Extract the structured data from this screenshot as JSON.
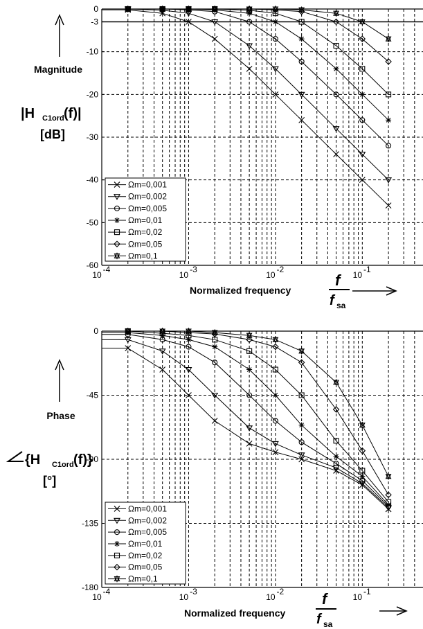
{
  "chart_data": [
    {
      "type": "line",
      "x_scale": "log",
      "xlim": [
        0.0001,
        0.5
      ],
      "ylim": [
        -60,
        0
      ],
      "yticks": [
        0,
        -3,
        -10,
        -20,
        -30,
        -40,
        -50,
        -60
      ],
      "ytick_labels": [
        "0",
        "-3",
        "-10",
        "-20",
        "-30",
        "-40",
        "-50",
        "-60"
      ],
      "xtick_exponents": [
        "-4",
        "-3",
        "-2",
        "-1"
      ],
      "ylabel_lines": [
        "Magnitude",
        "|H",
        "C1ord",
        "(f)|",
        "[dB]"
      ],
      "xlabel": "Normalized frequency",
      "frac_num": "f",
      "frac_den": "f",
      "frac_den_sub": "sa",
      "reference_line": -3,
      "grid": true,
      "legend_placement": "lower-left",
      "series": [
        {
          "name": "Ωm=0,001",
          "marker": "x",
          "x": [
            0.0002,
            0.0005,
            0.001,
            0.002,
            0.005,
            0.01,
            0.02,
            0.05,
            0.1,
            0.2
          ],
          "y": [
            -0.2,
            -1,
            -3,
            -7,
            -14,
            -20,
            -26,
            -34,
            -40,
            -46
          ]
        },
        {
          "name": "Ωm=0,002",
          "marker": "triangle-down",
          "x": [
            0.0002,
            0.0005,
            0.001,
            0.002,
            0.005,
            0.01,
            0.02,
            0.05,
            0.1,
            0.2
          ],
          "y": [
            0,
            -0.3,
            -1,
            -3,
            -8.6,
            -14,
            -20,
            -28,
            -34,
            -40
          ]
        },
        {
          "name": "Ωm=0,005",
          "marker": "circle",
          "x": [
            0.0002,
            0.0005,
            0.001,
            0.002,
            0.005,
            0.01,
            0.02,
            0.05,
            0.1,
            0.2
          ],
          "y": [
            0,
            0,
            -0.2,
            -0.6,
            -3,
            -7,
            -12.3,
            -20,
            -26,
            -32
          ]
        },
        {
          "name": "Ωm=0,01",
          "marker": "star",
          "x": [
            0.0002,
            0.0005,
            0.001,
            0.002,
            0.005,
            0.01,
            0.02,
            0.05,
            0.1,
            0.2
          ],
          "y": [
            0,
            0,
            0,
            -0.2,
            -1,
            -3,
            -7,
            -14,
            -20,
            -26
          ]
        },
        {
          "name": "Ωm=0,02",
          "marker": "square",
          "x": [
            0.0002,
            0.0005,
            0.001,
            0.002,
            0.005,
            0.01,
            0.02,
            0.05,
            0.1,
            0.2
          ],
          "y": [
            0,
            0,
            0,
            0,
            -0.3,
            -1,
            -3,
            -8.6,
            -14,
            -20
          ]
        },
        {
          "name": "Ωm=0,05",
          "marker": "diamond",
          "x": [
            0.0002,
            0.0005,
            0.001,
            0.002,
            0.005,
            0.01,
            0.02,
            0.05,
            0.1,
            0.2
          ],
          "y": [
            0,
            0,
            0,
            0,
            0,
            -0.2,
            -0.6,
            -3,
            -7,
            -12.3
          ]
        },
        {
          "name": "Ωm=0,1",
          "marker": "hexagram",
          "x": [
            0.0002,
            0.0005,
            0.001,
            0.002,
            0.005,
            0.01,
            0.02,
            0.05,
            0.1,
            0.2
          ],
          "y": [
            0,
            0,
            0,
            0,
            0,
            0,
            -0.2,
            -1,
            -3,
            -7
          ]
        }
      ]
    },
    {
      "type": "line",
      "x_scale": "log",
      "xlim": [
        0.0001,
        0.5
      ],
      "ylim": [
        -180,
        0
      ],
      "yticks": [
        0,
        -45,
        -90,
        -135,
        -180
      ],
      "ytick_labels": [
        "0",
        "-45",
        "-90",
        "-135",
        "-180"
      ],
      "xtick_exponents": [
        "-4",
        "-3",
        "-2",
        "-1"
      ],
      "ylabel_lines": [
        "Phase",
        "{H",
        "C1ord",
        "(f)}",
        "[°]"
      ],
      "xlabel": "Normalized frequency",
      "frac_num": "f",
      "frac_den": "f",
      "frac_den_sub": "sa",
      "grid": true,
      "legend_placement": "lower-left",
      "series": [
        {
          "name": "Ωm=0,001",
          "marker": "x",
          "x": [
            0.0002,
            0.0005,
            0.001,
            0.002,
            0.005,
            0.01,
            0.02,
            0.05,
            0.1,
            0.2
          ],
          "y": [
            -12,
            -27,
            -45,
            -63,
            -79,
            -85,
            -90,
            -98,
            -108,
            -125
          ]
        },
        {
          "name": "Ωm=0,002",
          "marker": "triangle-down",
          "x": [
            0.0002,
            0.0005,
            0.001,
            0.002,
            0.005,
            0.01,
            0.02,
            0.05,
            0.1,
            0.2
          ],
          "y": [
            -6,
            -14,
            -27,
            -45,
            -68,
            -79,
            -87,
            -96,
            -107,
            -124
          ]
        },
        {
          "name": "Ωm=0,005",
          "marker": "circle",
          "x": [
            0.0002,
            0.0005,
            0.001,
            0.002,
            0.005,
            0.01,
            0.02,
            0.05,
            0.1,
            0.2
          ],
          "y": [
            -2.3,
            -6,
            -11,
            -22,
            -45,
            -63,
            -78,
            -93,
            -105,
            -123
          ]
        },
        {
          "name": "Ωm=0,01",
          "marker": "star",
          "x": [
            0.0002,
            0.0005,
            0.001,
            0.002,
            0.005,
            0.01,
            0.02,
            0.05,
            0.1,
            0.2
          ],
          "y": [
            -1,
            -3,
            -6,
            -11,
            -27,
            -45,
            -66,
            -88,
            -102,
            -122
          ]
        },
        {
          "name": "Ωm=0,02",
          "marker": "square",
          "x": [
            0.0002,
            0.0005,
            0.001,
            0.002,
            0.005,
            0.01,
            0.02,
            0.05,
            0.1,
            0.2
          ],
          "y": [
            0,
            -1.5,
            -3,
            -6,
            -14,
            -27,
            -45,
            -77,
            -98,
            -120
          ]
        },
        {
          "name": "Ωm=0,05",
          "marker": "diamond",
          "x": [
            0.0002,
            0.0005,
            0.001,
            0.002,
            0.005,
            0.01,
            0.02,
            0.05,
            0.1,
            0.2
          ],
          "y": [
            0,
            0,
            -1,
            -2,
            -6,
            -11,
            -22,
            -55,
            -84,
            -115
          ]
        },
        {
          "name": "Ωm=0,1",
          "marker": "hexagram",
          "x": [
            0.0002,
            0.0005,
            0.001,
            0.002,
            0.005,
            0.01,
            0.02,
            0.05,
            0.1,
            0.2
          ],
          "y": [
            0,
            0,
            0,
            -1,
            -3,
            -6,
            -14,
            -36,
            -66,
            -102
          ]
        }
      ]
    }
  ]
}
